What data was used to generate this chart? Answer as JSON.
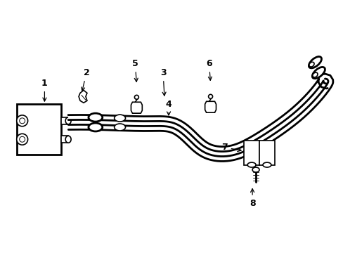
{
  "background_color": "#ffffff",
  "line_color": "#000000",
  "lw": 1.2,
  "lw_thick": 2.0,
  "figsize": [
    4.89,
    3.6
  ],
  "dpi": 100,
  "labels": [
    [
      "1",
      62,
      118,
      62,
      148
    ],
    [
      "2",
      122,
      103,
      115,
      133
    ],
    [
      "3",
      232,
      103,
      234,
      140
    ],
    [
      "4",
      240,
      148,
      240,
      168
    ],
    [
      "5",
      192,
      90,
      194,
      120
    ],
    [
      "6",
      298,
      90,
      300,
      118
    ],
    [
      "7",
      320,
      210,
      348,
      215
    ],
    [
      "8",
      360,
      290,
      360,
      265
    ]
  ]
}
